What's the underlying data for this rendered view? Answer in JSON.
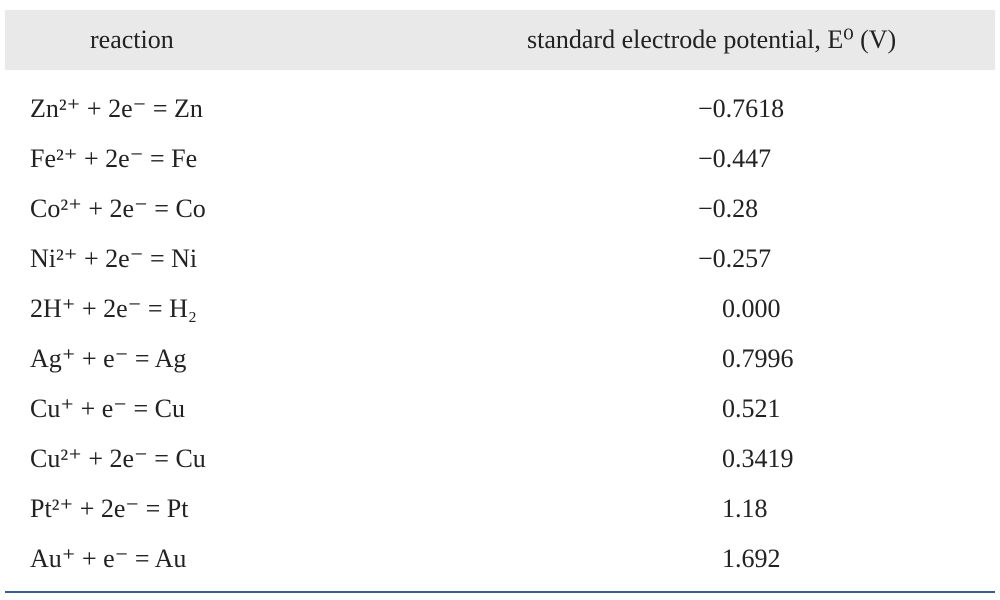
{
  "table": {
    "header": [
      "reaction",
      "standard electrode potential, E⁰ (V)"
    ],
    "rows": [
      [
        "Zn²⁺ + 2e⁻ = Zn",
        "−0.7618"
      ],
      [
        "Fe²⁺ + 2e⁻ = Fe",
        "−0.447"
      ],
      [
        "Co²⁺ + 2e⁻ = Co",
        "−0.28"
      ],
      [
        "Ni²⁺ + 2e⁻ = Ni",
        "−0.257"
      ],
      [
        "2H⁺ + 2e⁻ = H₂",
        "0.000"
      ],
      [
        "Ag⁺ + e⁻ = Ag",
        "0.7996"
      ],
      [
        "Cu⁺ + e⁻ = Cu",
        "0.521"
      ],
      [
        "Cu²⁺ + 2e⁻ = Cu",
        "0.3419"
      ],
      [
        "Pt²⁺ + 2e⁻ = Pt",
        "1.18"
      ],
      [
        "Au⁺ + e⁻ = Au",
        "1.692"
      ]
    ]
  }
}
